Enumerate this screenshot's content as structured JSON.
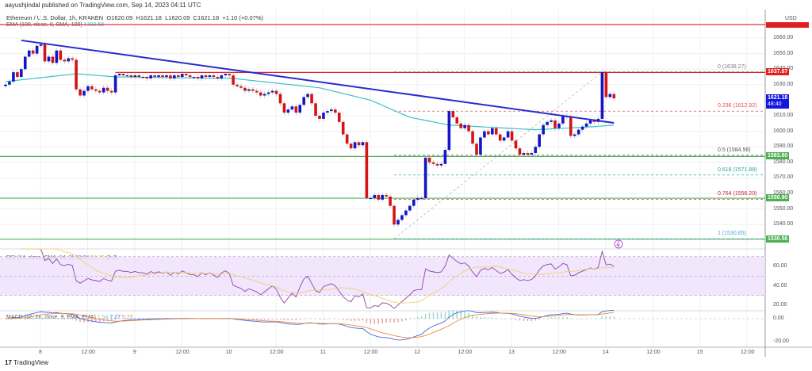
{
  "publisher": "aayushjindal published on TradingView.com, Sep 14, 2023 04:11 UTC",
  "legend": {
    "symbol": "Ethereum / U.S. Dollar, 1h, KRAKEN",
    "open": "O1620.09",
    "high": "H1621.18",
    "low": "L1620.09",
    "close": "C1621.18",
    "change": "+1.10 (+0.07%)"
  },
  "ema_legend": {
    "label": "EMA (100, close, 0, SMA, 100)",
    "value": "1603.58"
  },
  "rsi_legend": {
    "label": "RSI (14, close, SMA, 14, 2)",
    "value": "60.02",
    "sma_value": "58.79",
    "extra": "∅ ∅"
  },
  "macd_legend": {
    "label": "MACD (12, 26, close, 9, EMA, EMA)",
    "hist": "1.54",
    "macd": "7.27",
    "signal": "5.73"
  },
  "price_axis": {
    "currency": "USD",
    "ticks": [
      "1660.00",
      "1650.00",
      "1640.00",
      "1630.00",
      "1610.00",
      "1600.00",
      "1590.00",
      "1580.00",
      "1570.00",
      "1560.00",
      "1550.00",
      "1540.00"
    ],
    "rsi_ticks": [
      "60.00",
      "40.00",
      "20.00"
    ],
    "macd_ticks": [
      "0.00",
      "-20.00"
    ],
    "labels": {
      "resistance": "1637.87",
      "last_price": "1621.18",
      "countdown": "48:40",
      "support1": "1583.80",
      "support2": "1556.90",
      "support3": "1530.58"
    }
  },
  "time_axis": [
    "8",
    "12:00",
    "9",
    "12:00",
    "10",
    "12:00",
    "11",
    "12:00",
    "12",
    "12:00",
    "13",
    "12:00",
    "14",
    "12:00",
    "15",
    "12:00"
  ],
  "colors": {
    "up": "#1515c8",
    "down": "#d41414",
    "ema": "#3cc0cc",
    "trendline": "#2a2ad0",
    "resistance": "#e02020",
    "support": "#4caf50",
    "rsi": "#8e44ad",
    "rsi_sma": "#f0d070",
    "macd": "#4169e1",
    "signal": "#f08c3c"
  },
  "branding": "TradingView",
  "chart_data": {
    "type": "candlestick",
    "title": "Ethereum / U.S. Dollar, 1h, KRAKEN",
    "ylabel": "USD",
    "ylim": [
      1525,
      1670
    ],
    "grid": true,
    "closes": [
      1630,
      1632,
      1638,
      1635,
      1640,
      1648,
      1652,
      1650,
      1655,
      1656,
      1645,
      1648,
      1644,
      1652,
      1646,
      1645,
      1647,
      1646,
      1627,
      1623,
      1626,
      1629,
      1627,
      1626,
      1625,
      1628,
      1626,
      1625,
      1636,
      1637,
      1636,
      1636,
      1635,
      1636,
      1635,
      1635,
      1634,
      1636,
      1635,
      1636,
      1635,
      1636,
      1634,
      1636,
      1635,
      1637,
      1636,
      1635,
      1635,
      1634,
      1636,
      1635,
      1636,
      1635,
      1634,
      1636,
      1637,
      1636,
      1630,
      1629,
      1628,
      1626,
      1627,
      1626,
      1625,
      1623,
      1624,
      1625,
      1626,
      1624,
      1618,
      1612,
      1614,
      1616,
      1612,
      1617,
      1622,
      1624,
      1618,
      1610,
      1608,
      1612,
      1613,
      1614,
      1612,
      1606,
      1598,
      1592,
      1589,
      1593,
      1591,
      1593,
      1557,
      1557,
      1559,
      1556,
      1559,
      1558,
      1552,
      1540,
      1543,
      1546,
      1549,
      1552,
      1556,
      1557,
      1557,
      1583,
      1580,
      1579,
      1578,
      1579,
      1588,
      1613,
      1609,
      1605,
      1602,
      1604,
      1600,
      1592,
      1585,
      1596,
      1600,
      1598,
      1602,
      1598,
      1594,
      1596,
      1600,
      1594,
      1589,
      1585,
      1586,
      1585,
      1586,
      1590,
      1598,
      1604,
      1606,
      1607,
      1602,
      1605,
      1610,
      1609,
      1597,
      1598,
      1601,
      1603,
      1605,
      1607,
      1606,
      1608,
      1638,
      1622,
      1624,
      1621.18
    ],
    "ema100_points": [
      [
        0,
        1632
      ],
      [
        18,
        1637
      ],
      [
        28,
        1635
      ],
      [
        58,
        1634
      ],
      [
        80,
        1628
      ],
      [
        93,
        1620
      ],
      [
        103,
        1609
      ],
      [
        113,
        1604
      ],
      [
        135,
        1601
      ],
      [
        150,
        1603
      ],
      [
        155,
        1604
      ]
    ],
    "trendline": {
      "from": [
        4,
        1658.5
      ],
      "to": [
        155,
        1605.4
      ]
    },
    "horizontal_lines": [
      {
        "price": 1668.7,
        "color": "resistance"
      },
      {
        "price": 1637.87,
        "color": "resistance",
        "from_index": 28
      },
      {
        "price": 1583.8,
        "color": "support"
      },
      {
        "price": 1556.9,
        "color": "support"
      },
      {
        "price": 1530.58,
        "color": "support"
      }
    ],
    "fibonacci": {
      "from_index": 99,
      "to_index": 152,
      "levels": [
        {
          "ratio": "0",
          "price": 1638.27,
          "color": "#787b86"
        },
        {
          "ratio": "0.236",
          "price": 1612.92,
          "color": "#e05050"
        },
        {
          "ratio": "0.5",
          "price": 1584.56,
          "color": "#555555"
        },
        {
          "ratio": "0.618",
          "price": 1571.88,
          "color": "#26a69a"
        },
        {
          "ratio": "0.764",
          "price": 1556.2,
          "color": "#d02040"
        },
        {
          "ratio": "1",
          "price": 1530.85,
          "color": "#4aa8d8"
        }
      ]
    },
    "rsi": {
      "period": 14,
      "band": [
        30,
        70
      ],
      "mid": 50
    },
    "macd": {
      "fast": 12,
      "slow": 26,
      "signal": 9
    }
  }
}
